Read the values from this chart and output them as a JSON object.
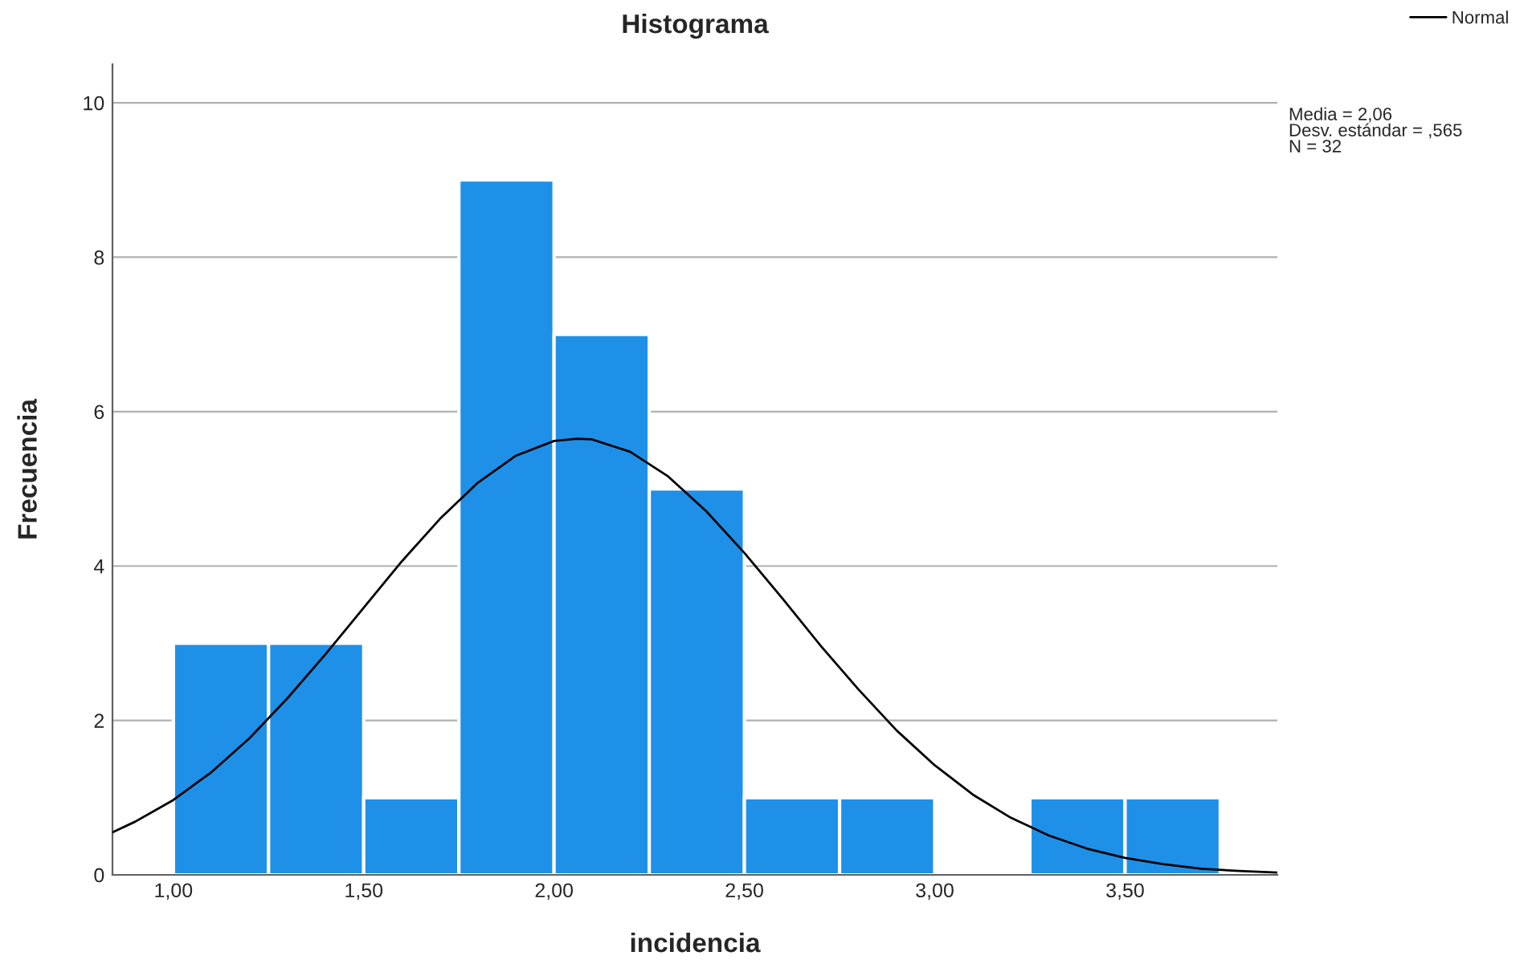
{
  "chart_data": {
    "type": "histogram",
    "title": "Histograma",
    "xlabel": "incidencia",
    "ylabel": "Frecuencia",
    "bins": [
      1.0,
      1.25,
      1.5,
      1.75,
      2.0,
      2.25,
      2.5,
      2.75,
      3.0,
      3.25,
      3.5,
      3.75
    ],
    "values": [
      3,
      3,
      1,
      9,
      7,
      5,
      1,
      1,
      0,
      1,
      1
    ],
    "color": "#1e90e8",
    "series": [
      {
        "type": "line",
        "name": "Normal",
        "color": "#000000",
        "x": [
          0.84,
          0.9,
          1.0,
          1.1,
          1.2,
          1.3,
          1.4,
          1.5,
          1.6,
          1.7,
          1.8,
          1.9,
          2.0,
          2.06,
          2.1,
          2.2,
          2.3,
          2.4,
          2.5,
          2.6,
          2.7,
          2.8,
          2.9,
          3.0,
          3.1,
          3.2,
          3.3,
          3.4,
          3.5,
          3.6,
          3.7,
          3.8,
          3.9
        ],
        "values": [
          0.55,
          0.69,
          0.97,
          1.33,
          1.77,
          2.29,
          2.86,
          3.46,
          4.06,
          4.61,
          5.08,
          5.43,
          5.62,
          5.65,
          5.64,
          5.48,
          5.16,
          4.71,
          4.17,
          3.58,
          2.97,
          2.4,
          1.87,
          1.42,
          1.04,
          0.74,
          0.51,
          0.34,
          0.22,
          0.14,
          0.08,
          0.05,
          0.03
        ]
      }
    ],
    "xlim": [
      0.84,
      3.9
    ],
    "ylim": [
      0,
      10.5
    ],
    "xticks": [
      {
        "value": 1.0,
        "label": "1,00"
      },
      {
        "value": 1.5,
        "label": "1,50"
      },
      {
        "value": 2.0,
        "label": "2,00"
      },
      {
        "value": 2.5,
        "label": "2,50"
      },
      {
        "value": 3.0,
        "label": "3,00"
      },
      {
        "value": 3.5,
        "label": "3,50"
      }
    ],
    "yticks": [
      0,
      2,
      4,
      6,
      8,
      10
    ],
    "grid": "y",
    "legend": "top right",
    "annotations": [
      "Media = 2,06",
      "Desv. estándar = ,565",
      "N = 32"
    ]
  }
}
